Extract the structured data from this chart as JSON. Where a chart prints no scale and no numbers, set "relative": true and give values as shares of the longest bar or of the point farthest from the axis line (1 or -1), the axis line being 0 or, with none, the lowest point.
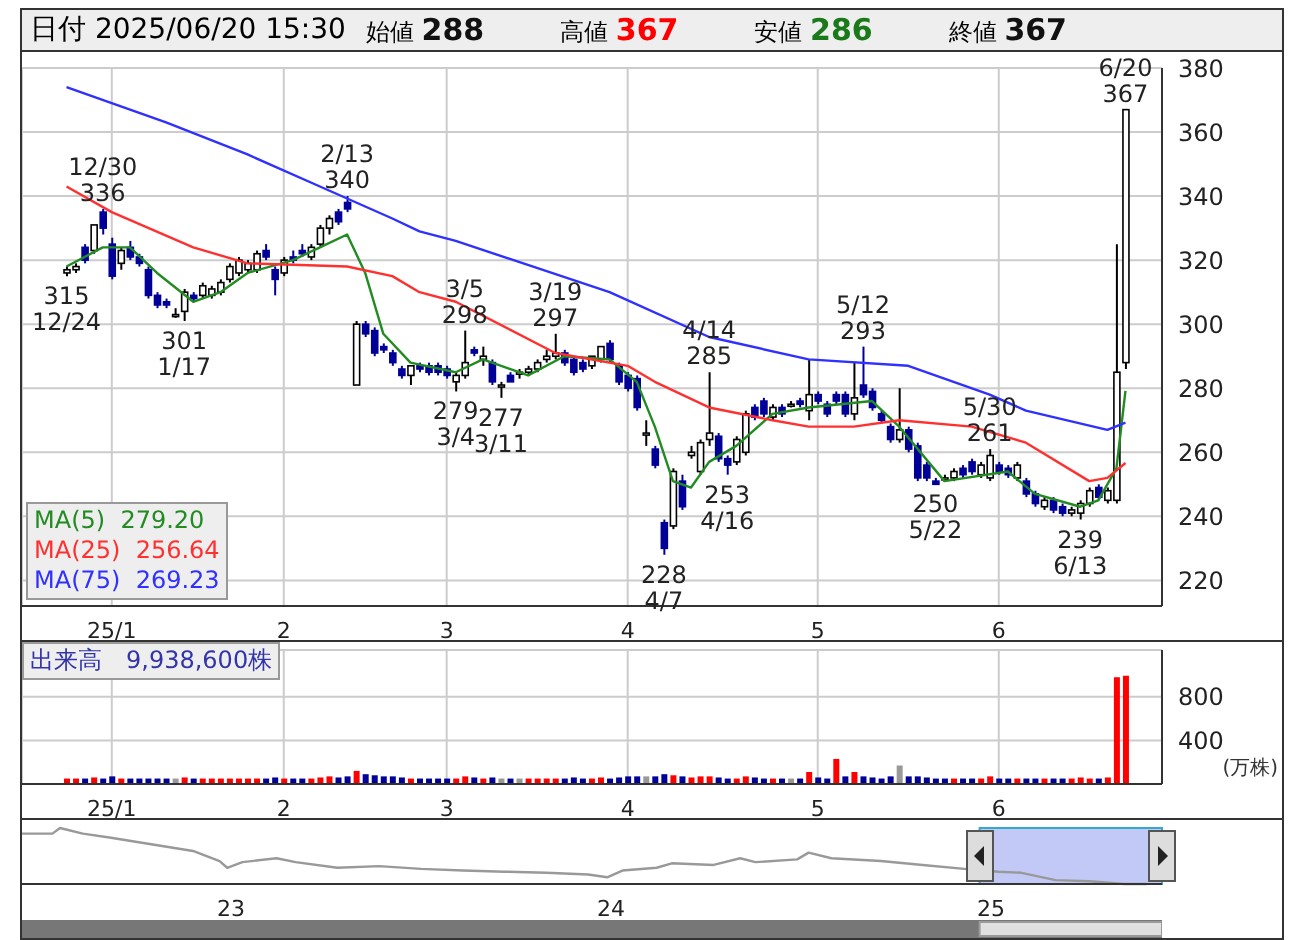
{
  "chart_data": [
    {
      "type": "candlestick",
      "title": "日付 2025/06/20 15:30",
      "categories": [
        null,
        null,
        null,
        null,
        null,
        "25/1",
        null,
        null,
        null,
        null,
        null,
        null,
        null,
        null,
        null,
        null,
        null,
        null,
        null,
        null,
        null,
        null,
        null,
        null,
        "2",
        null,
        null,
        null,
        null,
        null,
        null,
        null,
        null,
        null,
        null,
        null,
        null,
        null,
        null,
        null,
        null,
        null,
        "3",
        null,
        null,
        null,
        null,
        null,
        null,
        null,
        null,
        null,
        null,
        null,
        null,
        null,
        null,
        null,
        null,
        null,
        null,
        null,
        "4",
        null,
        null,
        null,
        null,
        null,
        null,
        null,
        null,
        null,
        null,
        null,
        null,
        null,
        null,
        null,
        null,
        null,
        null,
        null,
        null,
        "5",
        null,
        null,
        null,
        null,
        null,
        null,
        null,
        null,
        null,
        null,
        null,
        null,
        null,
        null,
        null,
        null,
        null,
        null,
        null,
        "6",
        null,
        null,
        null,
        null,
        null,
        null,
        null,
        null,
        null,
        null,
        null,
        null,
        null,
        null
      ],
      "ohlc": [
        [
          316,
          318,
          315,
          317
        ],
        [
          317,
          319,
          316,
          318
        ],
        [
          324,
          325,
          319,
          320
        ],
        [
          323,
          331,
          322,
          331
        ],
        [
          335,
          336,
          328,
          330
        ],
        [
          325,
          327,
          314,
          315
        ],
        [
          319,
          324,
          317,
          323
        ],
        [
          324,
          326,
          320,
          321
        ],
        [
          321,
          322,
          318,
          319
        ],
        [
          317,
          318,
          308,
          309
        ],
        [
          309,
          310,
          305,
          306
        ],
        [
          307,
          308,
          305,
          306
        ],
        [
          303,
          305,
          302,
          303
        ],
        [
          304,
          311,
          301,
          310
        ],
        [
          309,
          310,
          307,
          308
        ],
        [
          309,
          313,
          308,
          312
        ],
        [
          309,
          312,
          308,
          311
        ],
        [
          310,
          314,
          309,
          313
        ],
        [
          314,
          319,
          313,
          318
        ],
        [
          316,
          321,
          315,
          320
        ],
        [
          317,
          320,
          316,
          319
        ],
        [
          317,
          323,
          316,
          322
        ],
        [
          323,
          325,
          320,
          321
        ],
        [
          317,
          318,
          309,
          314
        ],
        [
          316,
          321,
          315,
          320
        ],
        [
          321,
          323,
          319,
          320
        ],
        [
          323,
          325,
          321,
          322
        ],
        [
          321,
          325,
          320,
          324
        ],
        [
          325,
          331,
          324,
          330
        ],
        [
          330,
          334,
          328,
          333
        ],
        [
          335,
          336,
          331,
          332
        ],
        [
          338,
          340,
          335,
          336
        ],
        [
          281,
          301,
          281,
          300
        ],
        [
          300,
          301,
          296,
          297
        ],
        [
          298,
          299,
          290,
          291
        ],
        [
          293,
          294,
          291,
          292
        ],
        [
          291,
          292,
          287,
          288
        ],
        [
          286,
          287,
          283,
          284
        ],
        [
          284,
          287,
          281,
          287
        ],
        [
          287,
          288,
          285,
          286
        ],
        [
          287,
          288,
          284,
          285
        ],
        [
          287,
          288,
          284,
          285
        ],
        [
          286,
          287,
          283,
          284
        ],
        [
          282,
          285,
          279,
          284
        ],
        [
          284,
          298,
          283,
          288
        ],
        [
          292,
          293,
          290,
          291
        ],
        [
          289,
          293,
          287,
          290
        ],
        [
          288,
          289,
          281,
          282
        ],
        [
          281,
          282,
          277,
          281
        ],
        [
          284,
          285,
          282,
          282
        ],
        [
          285,
          286,
          283,
          285
        ],
        [
          285,
          287,
          284,
          286
        ],
        [
          286,
          289,
          285,
          288
        ],
        [
          289,
          292,
          288,
          290
        ],
        [
          290,
          297,
          289,
          291
        ],
        [
          291,
          292,
          287,
          288
        ],
        [
          289,
          290,
          284,
          285
        ],
        [
          288,
          289,
          285,
          286
        ],
        [
          287,
          290,
          286,
          290
        ],
        [
          289,
          293,
          288,
          293
        ],
        [
          294,
          295,
          288,
          289
        ],
        [
          287,
          288,
          281,
          282
        ],
        [
          284,
          285,
          279,
          280
        ],
        [
          283,
          284,
          273,
          274
        ],
        [
          266,
          270,
          262,
          266
        ],
        [
          261,
          262,
          255,
          256
        ],
        [
          238,
          239,
          228,
          230
        ],
        [
          237,
          255,
          236,
          254
        ],
        [
          251,
          253,
          242,
          243
        ],
        [
          259,
          262,
          258,
          260
        ],
        [
          254,
          264,
          253,
          263
        ],
        [
          264,
          285,
          262,
          266
        ],
        [
          265,
          266,
          257,
          258
        ],
        [
          258,
          259,
          253,
          256
        ],
        [
          257,
          265,
          256,
          264
        ],
        [
          260,
          273,
          259,
          272
        ],
        [
          274,
          275,
          270,
          271
        ],
        [
          276,
          277,
          271,
          272
        ],
        [
          271,
          275,
          270,
          274
        ],
        [
          274,
          275,
          271,
          272
        ],
        [
          275,
          276,
          274,
          275
        ],
        [
          276,
          277,
          274,
          275
        ],
        [
          273,
          289,
          270,
          278
        ],
        [
          278,
          279,
          275,
          276
        ],
        [
          275,
          276,
          271,
          272
        ],
        [
          278,
          279,
          275,
          276
        ],
        [
          278,
          279,
          271,
          272
        ],
        [
          272,
          288,
          270,
          277
        ],
        [
          281,
          293,
          277,
          278
        ],
        [
          279,
          280,
          273,
          274
        ],
        [
          272,
          273,
          269,
          270
        ],
        [
          268,
          269,
          263,
          264
        ],
        [
          264,
          280,
          263,
          267
        ],
        [
          267,
          268,
          260,
          261
        ],
        [
          262,
          263,
          251,
          252
        ],
        [
          256,
          257,
          251,
          252
        ],
        [
          251,
          252,
          250,
          250
        ],
        [
          252,
          253,
          251,
          252
        ],
        [
          252,
          255,
          251,
          254
        ],
        [
          255,
          256,
          252,
          253
        ],
        [
          257,
          258,
          253,
          254
        ],
        [
          253,
          257,
          252,
          256
        ],
        [
          252,
          261,
          251,
          259
        ],
        [
          256,
          257,
          253,
          254
        ],
        [
          255,
          256,
          252,
          253
        ],
        [
          252,
          257,
          251,
          256
        ],
        [
          251,
          252,
          246,
          247
        ],
        [
          247,
          248,
          243,
          244
        ],
        [
          243,
          246,
          242,
          245
        ],
        [
          245,
          246,
          241,
          242
        ],
        [
          243,
          244,
          240,
          241
        ],
        [
          241,
          243,
          240,
          242
        ],
        [
          241,
          245,
          239,
          244
        ],
        [
          244,
          249,
          243,
          248
        ],
        [
          249,
          250,
          245,
          246
        ],
        [
          245,
          249,
          244,
          248
        ],
        [
          245,
          325,
          244,
          285
        ],
        [
          288,
          367,
          286,
          367
        ]
      ],
      "series": [
        {
          "type": "line",
          "name": "MA(5)  279.20",
          "color": "#228b22",
          "values": [
            318,
            null,
            null,
            null,
            324,
            null,
            null,
            324,
            null,
            null,
            316,
            null,
            null,
            null,
            307,
            null,
            null,
            310,
            null,
            null,
            316,
            null,
            null,
            null,
            null,
            320,
            null,
            null,
            324,
            null,
            null,
            328,
            null,
            316,
            null,
            297,
            null,
            null,
            288,
            null,
            null,
            null,
            null,
            285,
            null,
            null,
            289,
            null,
            null,
            null,
            null,
            284,
            null,
            null,
            null,
            290,
            null,
            null,
            null,
            null,
            289,
            null,
            null,
            282,
            null,
            268,
            null,
            251,
            null,
            249,
            null,
            257,
            null,
            null,
            262,
            null,
            null,
            null,
            272,
            null,
            null,
            null,
            274,
            null,
            null,
            null,
            null,
            null,
            null,
            276,
            null,
            null,
            268,
            null,
            null,
            null,
            null,
            251,
            null,
            null,
            null,
            null,
            null,
            null,
            254,
            null,
            null,
            247,
            null,
            null,
            null,
            null,
            243,
            null,
            245,
            null,
            255,
            279.2
          ]
        },
        {
          "type": "line",
          "name": "MA(25)  256.64",
          "color": "#ff3030",
          "values": [
            343,
            null,
            null,
            null,
            null,
            335,
            null,
            null,
            null,
            null,
            null,
            null,
            null,
            null,
            324,
            null,
            null,
            null,
            null,
            null,
            319,
            null,
            null,
            null,
            null,
            null,
            null,
            null,
            null,
            null,
            null,
            318,
            null,
            null,
            null,
            null,
            315,
            null,
            null,
            310,
            null,
            null,
            null,
            307,
            null,
            null,
            null,
            null,
            null,
            null,
            null,
            null,
            null,
            null,
            291,
            null,
            null,
            null,
            null,
            null,
            null,
            null,
            287,
            null,
            null,
            282,
            null,
            null,
            null,
            null,
            null,
            274,
            null,
            null,
            null,
            null,
            null,
            null,
            270,
            null,
            null,
            null,
            268,
            null,
            null,
            null,
            null,
            268,
            null,
            null,
            null,
            null,
            270,
            null,
            null,
            null,
            null,
            null,
            null,
            null,
            268,
            null,
            null,
            null,
            null,
            null,
            263,
            null,
            null,
            null,
            null,
            null,
            null,
            251,
            null,
            252,
            null,
            256.64
          ]
        },
        {
          "type": "line",
          "name": "MA(75)  269.23",
          "color": "#3030ff",
          "values": [
            374,
            null,
            null,
            null,
            null,
            null,
            null,
            null,
            null,
            null,
            null,
            363,
            null,
            null,
            null,
            null,
            null,
            null,
            null,
            null,
            353,
            null,
            null,
            null,
            null,
            null,
            null,
            null,
            343,
            null,
            null,
            null,
            null,
            null,
            null,
            null,
            333,
            null,
            null,
            329,
            null,
            null,
            null,
            326,
            null,
            null,
            null,
            null,
            null,
            null,
            null,
            null,
            null,
            null,
            null,
            null,
            null,
            null,
            null,
            null,
            310,
            null,
            null,
            null,
            null,
            null,
            null,
            null,
            null,
            null,
            null,
            296,
            null,
            null,
            null,
            null,
            null,
            null,
            null,
            null,
            null,
            null,
            289,
            null,
            null,
            null,
            null,
            null,
            null,
            null,
            null,
            null,
            null,
            287,
            null,
            null,
            null,
            null,
            null,
            null,
            null,
            null,
            278,
            null,
            null,
            null,
            273,
            null,
            null,
            null,
            null,
            null,
            null,
            null,
            null,
            267,
            null,
            269.23
          ]
        }
      ],
      "ylim": [
        212,
        380
      ],
      "yticks": [
        220,
        240,
        260,
        280,
        300,
        320,
        340,
        360,
        380
      ],
      "grid": true,
      "legend": "bottom left",
      "annotations": [
        "始値 288",
        "高値 367",
        "安値 286",
        "終値 367",
        {
          "text": "12/30\n336",
          "y": 336
        },
        {
          "text": "315\n12/24",
          "y": 315
        },
        {
          "text": "301\n1/17",
          "y": 301
        },
        {
          "text": "2/13\n340",
          "y": 340
        },
        {
          "text": "279\n3/4",
          "y": 279
        },
        {
          "text": "3/5\n298",
          "y": 298
        },
        {
          "text": "277\n3/11",
          "y": 277
        },
        {
          "text": "3/19\n297",
          "y": 297
        },
        {
          "text": "228\n4/7",
          "y": 228
        },
        {
          "text": "4/14\n285",
          "y": 285
        },
        {
          "text": "253\n4/16",
          "y": 253
        },
        {
          "text": "5/12\n293",
          "y": 293
        },
        {
          "text": "250\n5/22",
          "y": 250
        },
        {
          "text": "5/30\n261",
          "y": 261
        },
        {
          "text": "239\n6/13",
          "y": 239
        },
        {
          "text": "6/20\n367",
          "y": 367
        }
      ]
    },
    {
      "type": "bar",
      "title": "出来高　9,938,600株",
      "ylabel": "(万株)",
      "categories": [
        null,
        null,
        null,
        null,
        null,
        "25/1",
        null,
        null,
        null,
        null,
        null,
        null,
        null,
        null,
        null,
        null,
        null,
        null,
        null,
        null,
        null,
        null,
        null,
        null,
        "2",
        null,
        null,
        null,
        null,
        null,
        null,
        null,
        null,
        null,
        null,
        null,
        null,
        null,
        null,
        null,
        null,
        null,
        "3",
        null,
        null,
        null,
        null,
        null,
        null,
        null,
        null,
        null,
        null,
        null,
        null,
        null,
        null,
        null,
        null,
        null,
        null,
        null,
        "4",
        null,
        null,
        null,
        null,
        null,
        null,
        null,
        null,
        null,
        null,
        null,
        null,
        null,
        null,
        null,
        null,
        null,
        null,
        null,
        null,
        "5",
        null,
        null,
        null,
        null,
        null,
        null,
        null,
        null,
        null,
        null,
        null,
        null,
        null,
        null,
        null,
        null,
        null,
        null,
        null,
        "6",
        null,
        null,
        null,
        null,
        null,
        null,
        null,
        null,
        null,
        null,
        null,
        null,
        null,
        null
      ],
      "values": [
        50,
        50,
        50,
        60,
        50,
        70,
        50,
        50,
        50,
        50,
        50,
        50,
        50,
        60,
        50,
        50,
        50,
        50,
        50,
        50,
        50,
        50,
        50,
        60,
        50,
        50,
        50,
        50,
        60,
        70,
        60,
        70,
        120,
        90,
        80,
        70,
        70,
        60,
        50,
        50,
        50,
        50,
        50,
        50,
        70,
        60,
        50,
        60,
        50,
        50,
        50,
        50,
        50,
        50,
        50,
        50,
        60,
        50,
        50,
        60,
        50,
        60,
        70,
        70,
        70,
        70,
        90,
        80,
        70,
        60,
        70,
        70,
        60,
        50,
        50,
        70,
        60,
        50,
        50,
        50,
        50,
        50,
        110,
        60,
        50,
        230,
        70,
        110,
        70,
        60,
        50,
        70,
        170,
        70,
        70,
        60,
        50,
        50,
        50,
        50,
        50,
        50,
        70,
        50,
        50,
        50,
        50,
        50,
        50,
        50,
        50,
        50,
        60,
        50,
        50,
        60,
        980,
        993.86
      ],
      "colors": [
        "#ff0000",
        "#ff0000",
        "#000099",
        "#ff0000",
        "#000099",
        "#000099",
        "#ff0000",
        "#000099",
        "#000099",
        "#000099",
        "#000099",
        "#000099",
        "#999999",
        "#ff0000",
        "#000099",
        "#ff0000",
        "#ff0000",
        "#ff0000",
        "#ff0000",
        "#ff0000",
        "#ff0000",
        "#ff0000",
        "#000099",
        "#000099",
        "#ff0000",
        "#000099",
        "#000099",
        "#ff0000",
        "#ff0000",
        "#ff0000",
        "#000099",
        "#000099",
        "#ff0000",
        "#000099",
        "#000099",
        "#000099",
        "#000099",
        "#000099",
        "#ff0000",
        "#000099",
        "#000099",
        "#000099",
        "#000099",
        "#ff0000",
        "#ff0000",
        "#000099",
        "#ff0000",
        "#000099",
        "#999999",
        "#000099",
        "#999999",
        "#ff0000",
        "#ff0000",
        "#ff0000",
        "#ff0000",
        "#000099",
        "#000099",
        "#000099",
        "#ff0000",
        "#ff0000",
        "#000099",
        "#000099",
        "#000099",
        "#000099",
        "#999999",
        "#000099",
        "#000099",
        "#ff0000",
        "#000099",
        "#ff0000",
        "#ff0000",
        "#ff0000",
        "#000099",
        "#000099",
        "#ff0000",
        "#ff0000",
        "#000099",
        "#000099",
        "#ff0000",
        "#000099",
        "#999999",
        "#000099",
        "#ff0000",
        "#000099",
        "#000099",
        "#ff0000",
        "#000099",
        "#ff0000",
        "#000099",
        "#000099",
        "#000099",
        "#000099",
        "#999999",
        "#000099",
        "#000099",
        "#000099",
        "#000099",
        "#000099",
        "#ff0000",
        "#000099",
        "#000099",
        "#ff0000",
        "#ff0000",
        "#000099",
        "#000099",
        "#ff0000",
        "#000099",
        "#000099",
        "#ff0000",
        "#000099",
        "#000099",
        "#ff0000",
        "#ff0000",
        "#ff0000",
        "#000099",
        "#ff0000",
        "#ff0000",
        "#ff0000"
      ],
      "ylim": [
        0,
        1230
      ],
      "yticks": [
        400,
        800
      ],
      "grid": true
    },
    {
      "type": "line",
      "relative": true,
      "color": "#999999",
      "tick_labels": "x",
      "x": [
        2022.45,
        2022.53,
        2022.55,
        2022.61,
        2022.68,
        2022.79,
        2022.9,
        2022.97,
        2022.99,
        2023.03,
        2023.12,
        2023.17,
        2023.28,
        2023.39,
        2023.5,
        2023.61,
        2023.72,
        2023.83,
        2023.94,
        2023.99,
        2024.03,
        2024.12,
        2024.16,
        2024.27,
        2024.34,
        2024.38,
        2024.49,
        2024.52,
        2024.58,
        2024.71,
        2024.82,
        2024.93,
        2025.02,
        2025.08,
        2025.17,
        2025.26,
        2025.35,
        2025.41
      ],
      "values": [
        0.9,
        0.9,
        1,
        0.9,
        0.83,
        0.71,
        0.59,
        0.41,
        0.29,
        0.39,
        0.46,
        0.39,
        0.29,
        0.32,
        0.27,
        0.24,
        0.22,
        0.2,
        0.17,
        0.12,
        0.24,
        0.29,
        0.37,
        0.34,
        0.46,
        0.39,
        0.44,
        0.56,
        0.46,
        0.41,
        0.34,
        0.27,
        0.22,
        0.2,
        0.07,
        0.05,
        0,
        0
      ],
      "xlim": [
        2022.45,
        2025.45
      ],
      "xticks": [
        {
          "value": 2023,
          "label": "23"
        },
        {
          "value": 2024,
          "label": "24"
        },
        {
          "value": 2025,
          "label": "25"
        }
      ],
      "bands": [
        {
          "axis": "x",
          "from": 2024.97,
          "to": 2025.45,
          "color": "#b4bcf5"
        }
      ]
    }
  ]
}
